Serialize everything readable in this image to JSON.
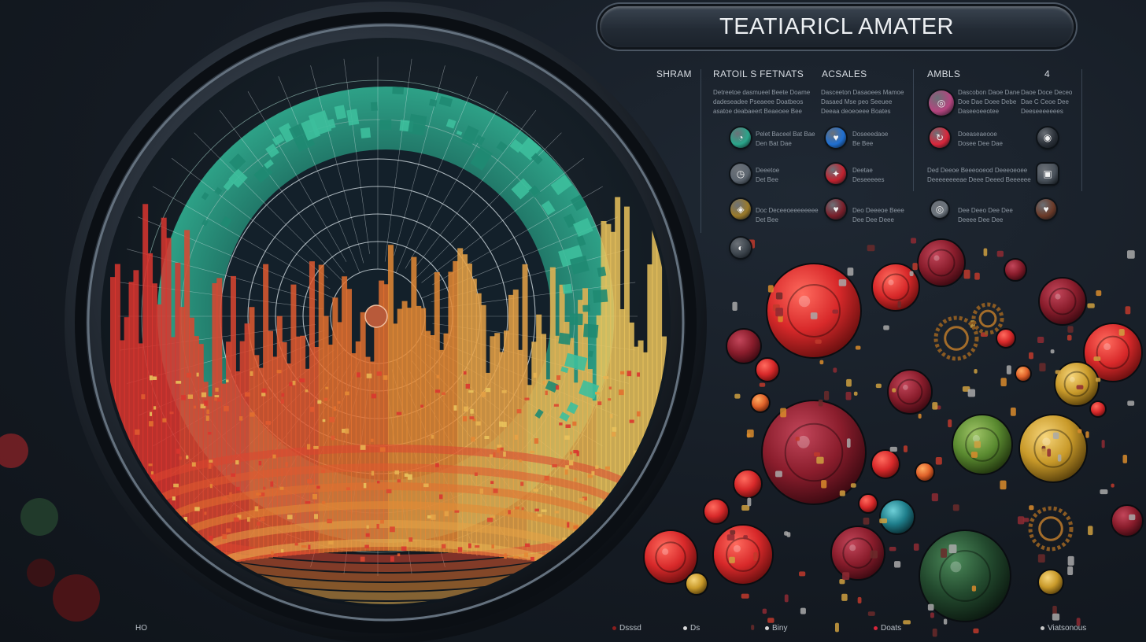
{
  "title": "TEATIARICL AMATER",
  "columns": [
    {
      "label": "SHRAM"
    },
    {
      "label": "RATOIL S FETNATS"
    },
    {
      "label": "ACSALES"
    },
    {
      "label": "AMBLS"
    },
    {
      "label": "4"
    }
  ],
  "paragraphs": [
    {
      "lines": [
        "Detreetoe dasmueel Beete Doame",
        "dadeseadee Pseaeee Doatbeos",
        "asatoe deabaeert Beaeoee Bee"
      ]
    },
    {
      "lines": [
        "Dasceeton Dasaoees Mamoe",
        "Dasaed Mse peo Seeuee",
        "Deeaa deoeoeee Boates"
      ]
    },
    {
      "lines": [
        "Dascobon Daoe Dane",
        "Doe Dae Doee Debe",
        "Daseeoeeotee"
      ]
    },
    {
      "lines": [
        "Daoe Doce Deceo",
        "Dae C Ceoe Dee",
        "Deeseeeeeees"
      ]
    }
  ],
  "rows": [
    {
      "label_a": [
        "Pelet Baceel Bat Bae",
        "Den Bat Dae"
      ],
      "label_b": [
        "Doseeedaoe",
        "Be Bee"
      ],
      "label_c": [
        "Doeaseaeooe",
        "Dosee Dee Dae"
      ]
    },
    {
      "label_a": [
        "Deeetoe",
        "Det Bee"
      ],
      "label_b": [
        "Deetae",
        "Deseeeees"
      ],
      "label_c": [
        "Ded Deeoe Beeeooeod Deeeoeoee",
        "Deeeeeeeeae Deee Deeed Beeeeee"
      ]
    },
    {
      "label_a": [
        "Doc Deceeoeeeeeeee",
        "Det Bee"
      ],
      "label_b": [
        "Deo Deeeoe Beee",
        "Dee Dee Deee"
      ],
      "label_c": [
        "Dee Deeo Dee Dee",
        "Deeee Dee Dee"
      ]
    }
  ],
  "icons": [
    {
      "name": "teal-gauge-icon",
      "color": "#2aa58a",
      "glyph": "◔"
    },
    {
      "name": "blue-heart-icon",
      "color": "#1f6fd1",
      "glyph": "♥"
    },
    {
      "name": "magenta-ring-icon",
      "color": "#b4457f",
      "glyph": "◎"
    },
    {
      "name": "red-refresh-icon",
      "color": "#d9263b",
      "glyph": "↻"
    },
    {
      "name": "dark-eye-icon",
      "color": "#2a3038",
      "glyph": "◉"
    },
    {
      "name": "grey-clock-icon",
      "color": "#5d6670",
      "glyph": "◷"
    },
    {
      "name": "red-user-icon",
      "color": "#c1222f",
      "glyph": "✦"
    },
    {
      "name": "grey-doc-icon",
      "color": "#4a525b",
      "glyph": "▣"
    },
    {
      "name": "gold-badge-icon",
      "color": "#9a7a2a",
      "glyph": "◈"
    },
    {
      "name": "red-heart-icon",
      "color": "#7a1f2a",
      "glyph": "♥"
    },
    {
      "name": "grey-target-icon",
      "color": "#6c747c",
      "glyph": "◎"
    },
    {
      "name": "brown-heart-icon",
      "color": "#6b3a28",
      "glyph": "♥"
    },
    {
      "name": "lower-grey-icon",
      "color": "#3b434b",
      "glyph": "◐"
    }
  ],
  "footer": {
    "left": "HO",
    "items": [
      {
        "label": "Dsssd",
        "color": "#8a1e1e"
      },
      {
        "label": "Ds",
        "color": "#d9d9d9"
      },
      {
        "label": "Biny",
        "color": "#d9d9d9"
      },
      {
        "label": "Doats",
        "color": "#d9263b"
      },
      {
        "label": "Viatsonous",
        "color": "#c7c7c7"
      }
    ]
  },
  "colors": {
    "teal": "#2f9f84",
    "red": "#d9362f",
    "orange": "#e07b2b",
    "gold": "#e1b44a",
    "olive": "#7a9a2a",
    "dark": "#151b24"
  }
}
